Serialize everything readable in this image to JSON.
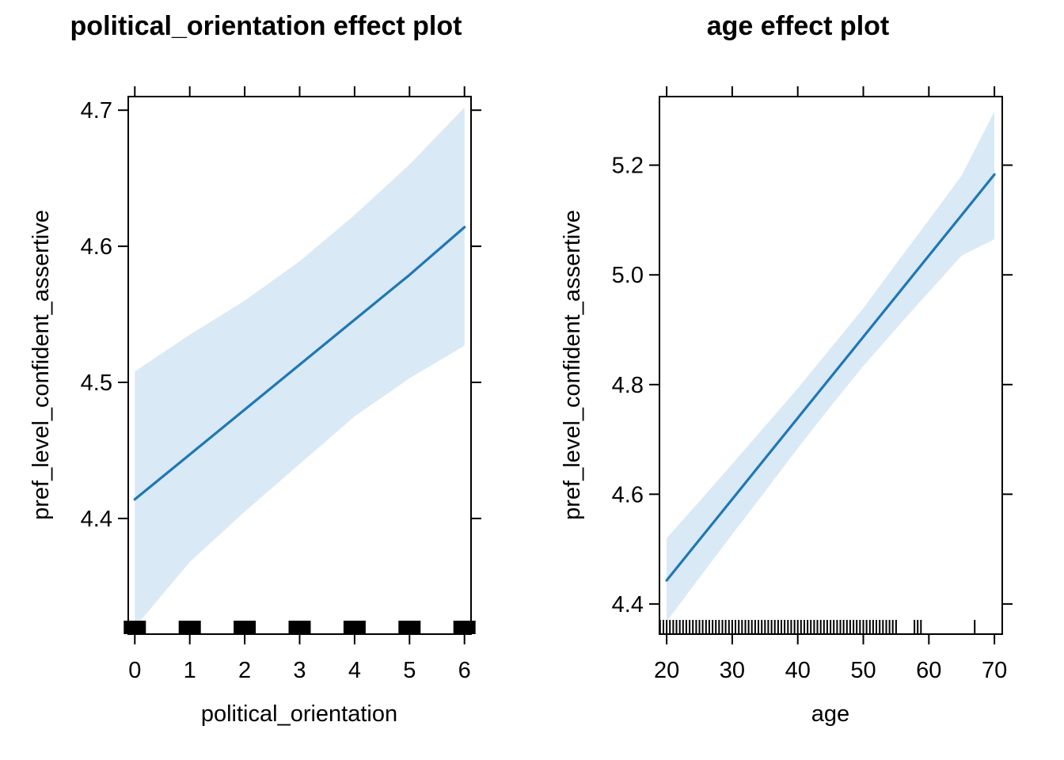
{
  "colors": {
    "line": "#1f77b4",
    "band": "#d9e9f5",
    "axis": "#000000"
  },
  "chart_data": [
    {
      "type": "line",
      "title": "political_orientation effect plot",
      "xlabel": "political_orientation",
      "ylabel": "pref_level_confident_assertive",
      "xlim": [
        -0.12,
        6.12
      ],
      "ylim": [
        4.315,
        4.71
      ],
      "xticks": [
        0,
        1,
        2,
        3,
        4,
        5,
        6
      ],
      "xtick_labels": [
        "0",
        "1",
        "2",
        "3",
        "4",
        "5",
        "6"
      ],
      "yticks": [
        4.4,
        4.5,
        4.6,
        4.7
      ],
      "ytick_labels": [
        "4.4",
        "4.5",
        "4.6",
        "4.7"
      ],
      "fit": {
        "x": [
          0,
          1,
          2,
          3,
          4,
          5,
          6
        ],
        "y": [
          4.414,
          4.447,
          4.48,
          4.513,
          4.546,
          4.579,
          4.614
        ]
      },
      "lower": [
        4.32,
        4.368,
        4.405,
        4.44,
        4.475,
        4.503,
        4.527
      ],
      "upper": [
        4.508,
        4.535,
        4.56,
        4.589,
        4.623,
        4.66,
        4.702
      ],
      "rug": [
        0,
        1,
        2,
        3,
        4,
        5,
        6
      ],
      "rug_style": "block"
    },
    {
      "type": "line",
      "title": "age effect plot",
      "xlabel": "age",
      "ylabel": "pref_level_confident_assertive",
      "xlim": [
        18.9,
        71.2
      ],
      "ylim": [
        4.345,
        5.325
      ],
      "xticks": [
        20,
        30,
        40,
        50,
        60,
        70
      ],
      "xtick_labels": [
        "20",
        "30",
        "40",
        "50",
        "60",
        "70"
      ],
      "yticks": [
        4.4,
        4.6,
        4.8,
        5.0,
        5.2
      ],
      "ytick_labels": [
        "4.4",
        "4.6",
        "4.8",
        "5.0",
        "5.2"
      ],
      "fit": {
        "x": [
          20,
          25,
          30,
          35,
          40,
          45,
          50,
          55,
          60,
          65,
          70
        ],
        "y": [
          4.443,
          4.517,
          4.591,
          4.665,
          4.739,
          4.813,
          4.887,
          4.961,
          5.035,
          5.109,
          5.183
        ]
      },
      "lower": [
        4.368,
        4.448,
        4.527,
        4.605,
        4.684,
        4.76,
        4.834,
        4.902,
        4.969,
        5.035,
        5.065
      ],
      "upper": [
        4.52,
        4.587,
        4.655,
        4.724,
        4.793,
        4.866,
        4.939,
        5.02,
        5.1,
        5.181,
        5.298
      ],
      "rug": [
        19,
        19.5,
        20,
        20.5,
        21,
        21.5,
        22,
        22.5,
        23,
        23.5,
        24,
        24.5,
        25,
        25.5,
        26,
        26.5,
        27,
        27.5,
        28,
        28.5,
        29,
        29.5,
        30,
        30.5,
        31,
        31.5,
        32,
        32.5,
        33,
        33.5,
        34,
        34.5,
        35,
        35.5,
        36,
        36.5,
        37,
        37.5,
        38,
        38.5,
        39,
        39.5,
        40,
        40.5,
        41,
        41.5,
        42,
        42.5,
        43,
        43.5,
        44,
        44.5,
        45,
        45.5,
        46,
        46.5,
        47,
        47.5,
        48,
        48.5,
        49,
        49.5,
        50,
        50.5,
        51,
        51.5,
        52,
        52.5,
        53,
        53.5,
        54,
        54.5,
        55,
        57.8,
        58.3,
        58.8,
        67
      ],
      "rug_style": "line"
    }
  ]
}
